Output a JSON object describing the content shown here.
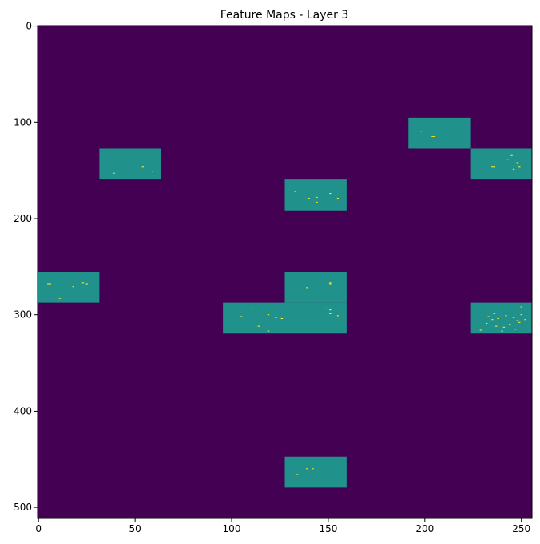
{
  "chart_data": {
    "type": "heatmap",
    "title": "Feature Maps - Layer 3",
    "xlabel": "",
    "ylabel": "",
    "xlim": [
      -0.5,
      255.5
    ],
    "ylim": [
      511.5,
      -0.5
    ],
    "y_inverted": true,
    "grid": false,
    "x_ticks": [
      0,
      50,
      100,
      150,
      200,
      250
    ],
    "y_ticks": [
      0,
      100,
      200,
      300,
      400,
      500
    ],
    "colormap": "viridis",
    "colors": {
      "background": "#440154",
      "block": "#21918c",
      "hot_spot": "#fde725"
    },
    "blocks": [
      {
        "x": [
          192,
          224
        ],
        "y": [
          96,
          128
        ],
        "value": 0.5
      },
      {
        "x": [
          32,
          64
        ],
        "y": [
          128,
          160
        ],
        "value": 0.5
      },
      {
        "x": [
          224,
          256
        ],
        "y": [
          128,
          160
        ],
        "value": 0.5
      },
      {
        "x": [
          128,
          160
        ],
        "y": [
          160,
          192
        ],
        "value": 0.5
      },
      {
        "x": [
          0,
          32
        ],
        "y": [
          256,
          288
        ],
        "value": 0.5
      },
      {
        "x": [
          128,
          160
        ],
        "y": [
          256,
          288
        ],
        "value": 0.5
      },
      {
        "x": [
          96,
          160
        ],
        "y": [
          288,
          320
        ],
        "value": 0.5
      },
      {
        "x": [
          224,
          256
        ],
        "y": [
          288,
          320
        ],
        "value": 0.5
      },
      {
        "x": [
          128,
          160
        ],
        "y": [
          448,
          480
        ],
        "value": 0.5
      }
    ],
    "hot_spots": [
      [
        198,
        110
      ],
      [
        204,
        115
      ],
      [
        205,
        115
      ],
      [
        39,
        153
      ],
      [
        54,
        146
      ],
      [
        59,
        151
      ],
      [
        235,
        146
      ],
      [
        236,
        146
      ],
      [
        243,
        139
      ],
      [
        245,
        134
      ],
      [
        248,
        142
      ],
      [
        246,
        149
      ],
      [
        249,
        146
      ],
      [
        133,
        172
      ],
      [
        140,
        179
      ],
      [
        144,
        178
      ],
      [
        151,
        174
      ],
      [
        155,
        179
      ],
      [
        144,
        183
      ],
      [
        5,
        268
      ],
      [
        6,
        268
      ],
      [
        11,
        283
      ],
      [
        23,
        267
      ],
      [
        25,
        268
      ],
      [
        18,
        271
      ],
      [
        139,
        272
      ],
      [
        151,
        267
      ],
      [
        151,
        268
      ],
      [
        110,
        294
      ],
      [
        105,
        302
      ],
      [
        119,
        300
      ],
      [
        123,
        303
      ],
      [
        126,
        304
      ],
      [
        114,
        312
      ],
      [
        119,
        317
      ],
      [
        149,
        294
      ],
      [
        151,
        295
      ],
      [
        155,
        301
      ],
      [
        151,
        299
      ],
      [
        229,
        316
      ],
      [
        232,
        309
      ],
      [
        233,
        302
      ],
      [
        235,
        305
      ],
      [
        237,
        312
      ],
      [
        240,
        317
      ],
      [
        242,
        301
      ],
      [
        244,
        310
      ],
      [
        246,
        303
      ],
      [
        248,
        306
      ],
      [
        250,
        300
      ],
      [
        252,
        305
      ],
      [
        250,
        292
      ],
      [
        238,
        304
      ],
      [
        241,
        313
      ],
      [
        247,
        315
      ],
      [
        249,
        308
      ],
      [
        236,
        299
      ],
      [
        134,
        466
      ],
      [
        139,
        460
      ],
      [
        142,
        460
      ]
    ]
  }
}
